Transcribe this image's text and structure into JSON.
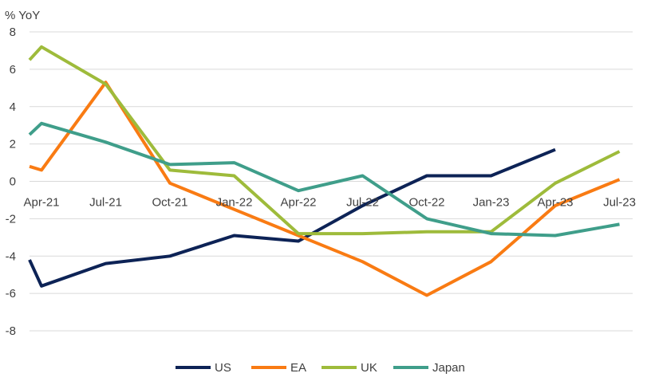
{
  "chart_data": {
    "type": "line",
    "ylabel": "% YoY",
    "ylim": [
      -8,
      8
    ],
    "yticks": [
      8,
      6,
      4,
      2,
      0,
      -2,
      -4,
      -6,
      -8
    ],
    "grid": true,
    "legend_position": "bottom",
    "x_tick_labels": [
      "Apr-21",
      "Jul-21",
      "Oct-21",
      "Jan-22",
      "Apr-22",
      "Jul-22",
      "Oct-22",
      "Jan-23",
      "Apr-23",
      "Jul-23"
    ],
    "x": [
      "Mar-21",
      "Apr-21",
      "Jul-21",
      "Oct-21",
      "Jan-22",
      "Apr-22",
      "Jul-22",
      "Oct-22",
      "Jan-23",
      "Apr-23",
      "Jul-23"
    ],
    "series": [
      {
        "name": "US",
        "color": "#0d2356",
        "values": [
          -4.2,
          -5.6,
          -4.4,
          -4.0,
          -2.9,
          -3.2,
          -1.3,
          0.3,
          0.3,
          1.7,
          null
        ]
      },
      {
        "name": "EA",
        "color": "#f97b13",
        "values": [
          0.8,
          0.6,
          5.3,
          -0.1,
          -1.5,
          -2.9,
          -4.3,
          -6.1,
          -4.3,
          -1.3,
          0.1
        ]
      },
      {
        "name": "UK",
        "color": "#9ebb3b",
        "values": [
          6.5,
          7.2,
          5.2,
          0.6,
          0.3,
          -2.8,
          -2.8,
          -2.7,
          -2.7,
          -0.1,
          1.6
        ]
      },
      {
        "name": "Japan",
        "color": "#3f9e8a",
        "values": [
          2.5,
          3.1,
          2.1,
          0.9,
          1.0,
          -0.5,
          0.3,
          -2.0,
          -2.8,
          -2.9,
          -2.3
        ]
      }
    ]
  }
}
